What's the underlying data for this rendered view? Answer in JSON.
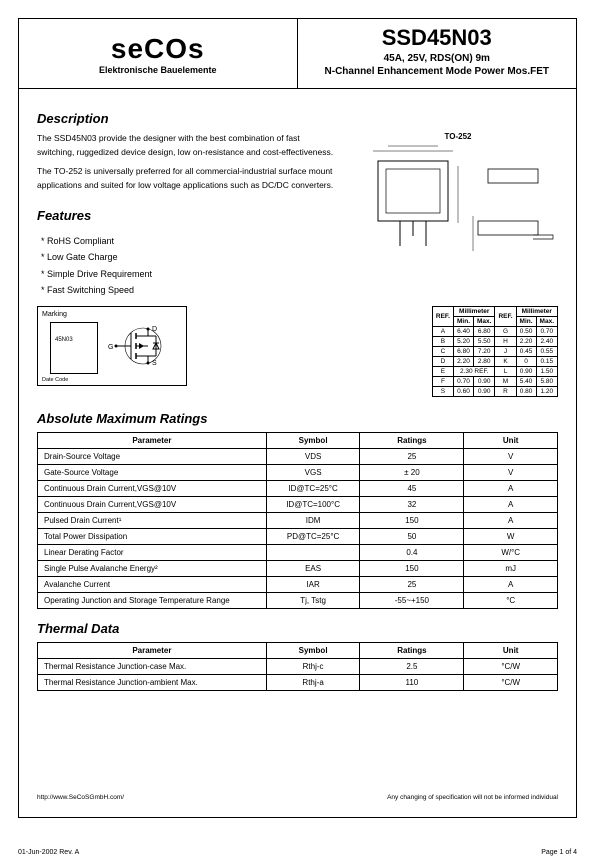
{
  "header": {
    "logo": "seCOs",
    "logo_sub": "Elektronische Bauelemente",
    "part_no": "SSD45N03",
    "specs": "45A, 25V, RDS(ON) 9m",
    "type": "N-Channel Enhancement Mode Power Mos.FET"
  },
  "description": {
    "heading": "Description",
    "text1": "The SSD45N03 provide the designer with the best combination of fast switching, ruggedized device design, low on-resistance and cost-effectiveness.",
    "text2": "The TO-252 is universally preferred for all commercial-industrial surface mount applications and suited for low voltage applications such as DC/DC converters.",
    "pkg_label": "TO-252"
  },
  "features": {
    "heading": "Features",
    "items": [
      "RoHS Compliant",
      "Low Gate Charge",
      "Simple Drive Requirement",
      "Fast Switching Speed"
    ]
  },
  "marking": {
    "label": "Marking",
    "chip_text": "45N03",
    "date": "Date Code"
  },
  "dims": {
    "header_ref": "REF.",
    "header_mm": "Millimeter",
    "header_min": "Min.",
    "header_max": "Max.",
    "rows_left": [
      [
        "A",
        "6.40",
        "6.80"
      ],
      [
        "B",
        "5.20",
        "5.50"
      ],
      [
        "C",
        "6.80",
        "7.20"
      ],
      [
        "D",
        "2.20",
        "2.80"
      ],
      [
        "E",
        "2.30 REF.",
        ""
      ],
      [
        "F",
        "0.70",
        "0.90"
      ],
      [
        "S",
        "0.60",
        "0.90"
      ]
    ],
    "rows_right": [
      [
        "G",
        "0.50",
        "0.70"
      ],
      [
        "H",
        "2.20",
        "2.40"
      ],
      [
        "J",
        "0.45",
        "0.55"
      ],
      [
        "K",
        "0",
        "0.15"
      ],
      [
        "L",
        "0.90",
        "1.50"
      ],
      [
        "M",
        "5.40",
        "5.80"
      ],
      [
        "R",
        "0.80",
        "1.20"
      ]
    ]
  },
  "abs_max": {
    "heading": "Absolute Maximum Ratings",
    "cols": [
      "Parameter",
      "Symbol",
      "Ratings",
      "Unit"
    ],
    "rows": [
      [
        "Drain-Source Voltage",
        "VDS",
        "25",
        "V"
      ],
      [
        "Gate-Source Voltage",
        "VGS",
        "± 20",
        "V"
      ],
      [
        "Continuous Drain Current,VGS@10V",
        "ID@TC=25°C",
        "45",
        "A"
      ],
      [
        "Continuous Drain Current,VGS@10V",
        "ID@TC=100°C",
        "32",
        "A"
      ],
      [
        "Pulsed Drain Current¹",
        "IDM",
        "150",
        "A"
      ],
      [
        "Total Power Dissipation",
        "PD@TC=25°C",
        "50",
        "W"
      ],
      [
        "Linear Derating Factor",
        "",
        "0.4",
        "W/°C"
      ],
      [
        "Single Pulse Avalanche Energy²",
        "EAS",
        "150",
        "mJ"
      ],
      [
        "Avalanche Current",
        "IAR",
        "25",
        "A"
      ],
      [
        "Operating Junction and Storage Temperature Range",
        "Tj, Tstg",
        "-55~+150",
        "°C"
      ]
    ]
  },
  "thermal": {
    "heading": "Thermal Data",
    "cols": [
      "Parameter",
      "Symbol",
      "Ratings",
      "Unit"
    ],
    "rows": [
      [
        "Thermal Resistance Junction-case                          Max.",
        "Rthj-c",
        "2.5",
        "°C/W"
      ],
      [
        "Thermal Resistance Junction-ambient                    Max.",
        "Rthj-a",
        "110",
        "°C/W"
      ]
    ]
  },
  "footer": {
    "url": "http://www.SeCoSGmbH.com/",
    "disclaimer": "Any changing of specification will not be informed individual",
    "date": "01-Jun-2002 Rev. A",
    "page": "Page 1 of 4"
  }
}
